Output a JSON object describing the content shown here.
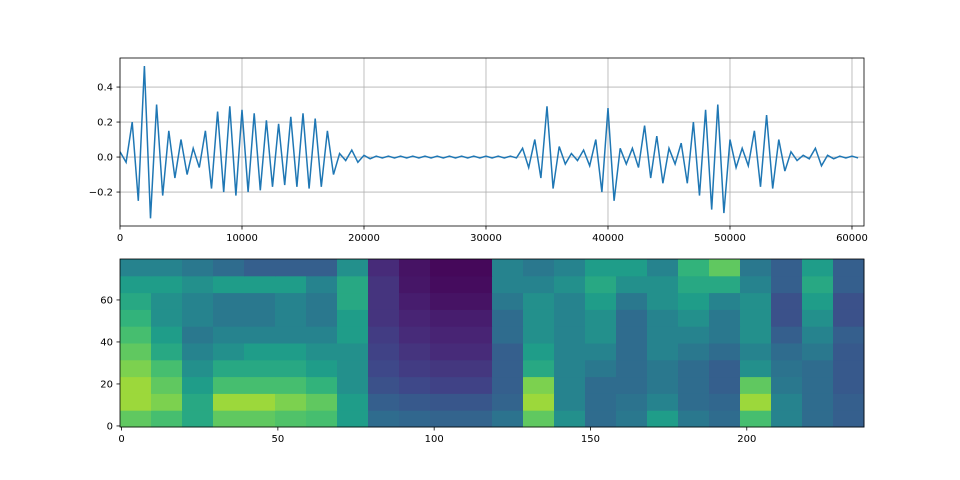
{
  "chart_data": [
    {
      "type": "line",
      "color": "#1f77b4",
      "grid": true,
      "xlim": [
        0,
        60985
      ],
      "ylim": [
        -0.394,
        0.566
      ],
      "xticks": [
        0,
        10000,
        20000,
        30000,
        40000,
        50000,
        60000
      ],
      "yticks": [
        {
          "value": -0.2,
          "label": "−0.2"
        },
        {
          "value": 0,
          "label": "0.0"
        },
        0.2,
        0.4
      ],
      "x": [
        0,
        500,
        1000,
        1500,
        2000,
        2500,
        3000,
        3500,
        4000,
        4500,
        5000,
        5500,
        6000,
        6500,
        7000,
        7500,
        8000,
        8500,
        9000,
        9500,
        10000,
        10500,
        11000,
        11500,
        12000,
        12500,
        13000,
        13500,
        14000,
        14500,
        15000,
        15500,
        16000,
        16500,
        17000,
        17500,
        18000,
        18500,
        19000,
        19500,
        20000,
        20500,
        21000,
        21500,
        22000,
        22500,
        23000,
        23500,
        24000,
        24500,
        25000,
        25500,
        26000,
        26500,
        27000,
        27500,
        28000,
        28500,
        29000,
        29500,
        30000,
        30500,
        31000,
        31500,
        32000,
        32500,
        33000,
        33500,
        34000,
        34500,
        35000,
        35500,
        36000,
        36500,
        37000,
        37500,
        38000,
        38500,
        39000,
        39500,
        40000,
        40500,
        41000,
        41500,
        42000,
        42500,
        43000,
        43500,
        44000,
        44500,
        45000,
        45500,
        46000,
        46500,
        47000,
        47500,
        48000,
        48500,
        49000,
        49500,
        50000,
        50500,
        51000,
        51500,
        52000,
        52500,
        53000,
        53500,
        54000,
        54500,
        55000,
        55500,
        56000,
        56500,
        57000,
        57500,
        58000,
        58500,
        59000,
        59500,
        60000,
        60500
      ],
      "values": [
        0.03,
        -0.03,
        0.2,
        -0.25,
        0.52,
        -0.35,
        0.3,
        -0.22,
        0.15,
        -0.12,
        0.1,
        -0.1,
        0.05,
        -0.06,
        0.15,
        -0.18,
        0.26,
        -0.2,
        0.29,
        -0.22,
        0.27,
        -0.2,
        0.25,
        -0.19,
        0.21,
        -0.17,
        0.19,
        -0.16,
        0.23,
        -0.17,
        0.25,
        -0.18,
        0.22,
        -0.17,
        0.15,
        -0.1,
        0.02,
        -0.02,
        0.04,
        -0.03,
        0.01,
        -0.01,
        0.005,
        -0.005,
        0.005,
        -0.005,
        0.005,
        -0.005,
        0.005,
        -0.005,
        0.005,
        -0.005,
        0.005,
        -0.005,
        0.005,
        -0.005,
        0.005,
        -0.005,
        0.005,
        -0.005,
        0.005,
        -0.005,
        0.005,
        -0.005,
        0.005,
        -0.005,
        0.05,
        -0.06,
        0.1,
        -0.12,
        0.29,
        -0.18,
        0.06,
        -0.04,
        0.02,
        -0.02,
        0.04,
        -0.05,
        0.1,
        -0.2,
        0.28,
        -0.25,
        0.05,
        -0.04,
        0.05,
        -0.06,
        0.18,
        -0.12,
        0.12,
        -0.15,
        0.05,
        -0.04,
        0.08,
        -0.15,
        0.2,
        -0.22,
        0.27,
        -0.3,
        0.3,
        -0.32,
        0.1,
        -0.06,
        0.05,
        -0.05,
        0.15,
        -0.17,
        0.24,
        -0.18,
        0.1,
        -0.08,
        0.03,
        -0.02,
        0.01,
        -0.01,
        0.05,
        -0.05,
        0.01,
        -0.01,
        0.005,
        -0.005,
        0.005,
        -0.005
      ]
    },
    {
      "type": "heatmap",
      "colormap": "viridis",
      "grid": false,
      "xlim": [
        -0.5,
        237.5
      ],
      "ylim": [
        -0.5,
        79.5
      ],
      "xticks": [
        0,
        50,
        100,
        150,
        200
      ],
      "yticks": [
        0,
        20,
        40,
        60
      ],
      "values": [
        [
          0.75,
          0.7,
          0.6,
          0.75,
          0.75,
          0.72,
          0.7,
          0.55,
          0.35,
          0.33,
          0.32,
          0.32,
          0.38,
          0.75,
          0.5,
          0.35,
          0.4,
          0.55,
          0.4,
          0.35,
          0.7,
          0.45,
          0.35,
          0.3
        ],
        [
          0.85,
          0.8,
          0.6,
          0.85,
          0.85,
          0.8,
          0.75,
          0.55,
          0.3,
          0.28,
          0.27,
          0.27,
          0.32,
          0.85,
          0.45,
          0.35,
          0.38,
          0.45,
          0.35,
          0.33,
          0.85,
          0.45,
          0.35,
          0.3
        ],
        [
          0.85,
          0.75,
          0.55,
          0.7,
          0.7,
          0.7,
          0.65,
          0.5,
          0.25,
          0.22,
          0.2,
          0.2,
          0.3,
          0.8,
          0.45,
          0.35,
          0.35,
          0.4,
          0.35,
          0.3,
          0.75,
          0.4,
          0.35,
          0.28
        ],
        [
          0.8,
          0.7,
          0.5,
          0.6,
          0.6,
          0.6,
          0.55,
          0.5,
          0.22,
          0.18,
          0.16,
          0.16,
          0.3,
          0.6,
          0.45,
          0.4,
          0.35,
          0.4,
          0.35,
          0.3,
          0.5,
          0.38,
          0.35,
          0.28
        ],
        [
          0.75,
          0.6,
          0.45,
          0.5,
          0.55,
          0.55,
          0.5,
          0.5,
          0.2,
          0.15,
          0.12,
          0.12,
          0.3,
          0.55,
          0.45,
          0.45,
          0.35,
          0.45,
          0.4,
          0.35,
          0.45,
          0.35,
          0.4,
          0.28
        ],
        [
          0.7,
          0.55,
          0.4,
          0.45,
          0.45,
          0.45,
          0.45,
          0.55,
          0.18,
          0.12,
          0.1,
          0.1,
          0.35,
          0.5,
          0.45,
          0.5,
          0.35,
          0.45,
          0.45,
          0.4,
          0.5,
          0.3,
          0.45,
          0.3
        ],
        [
          0.65,
          0.5,
          0.45,
          0.4,
          0.4,
          0.45,
          0.4,
          0.55,
          0.15,
          0.1,
          0.08,
          0.08,
          0.35,
          0.5,
          0.45,
          0.5,
          0.35,
          0.45,
          0.5,
          0.4,
          0.5,
          0.25,
          0.5,
          0.25
        ],
        [
          0.6,
          0.5,
          0.45,
          0.4,
          0.4,
          0.45,
          0.4,
          0.6,
          0.15,
          0.08,
          0.05,
          0.05,
          0.4,
          0.5,
          0.45,
          0.55,
          0.4,
          0.5,
          0.55,
          0.45,
          0.5,
          0.25,
          0.55,
          0.25
        ],
        [
          0.55,
          0.55,
          0.5,
          0.55,
          0.55,
          0.55,
          0.45,
          0.6,
          0.15,
          0.06,
          0.03,
          0.03,
          0.45,
          0.45,
          0.5,
          0.6,
          0.5,
          0.5,
          0.6,
          0.6,
          0.45,
          0.3,
          0.6,
          0.3
        ],
        [
          0.45,
          0.45,
          0.4,
          0.35,
          0.3,
          0.3,
          0.3,
          0.5,
          0.12,
          0.05,
          0.02,
          0.02,
          0.45,
          0.4,
          0.45,
          0.55,
          0.55,
          0.45,
          0.65,
          0.75,
          0.4,
          0.3,
          0.55,
          0.3
        ]
      ]
    }
  ]
}
